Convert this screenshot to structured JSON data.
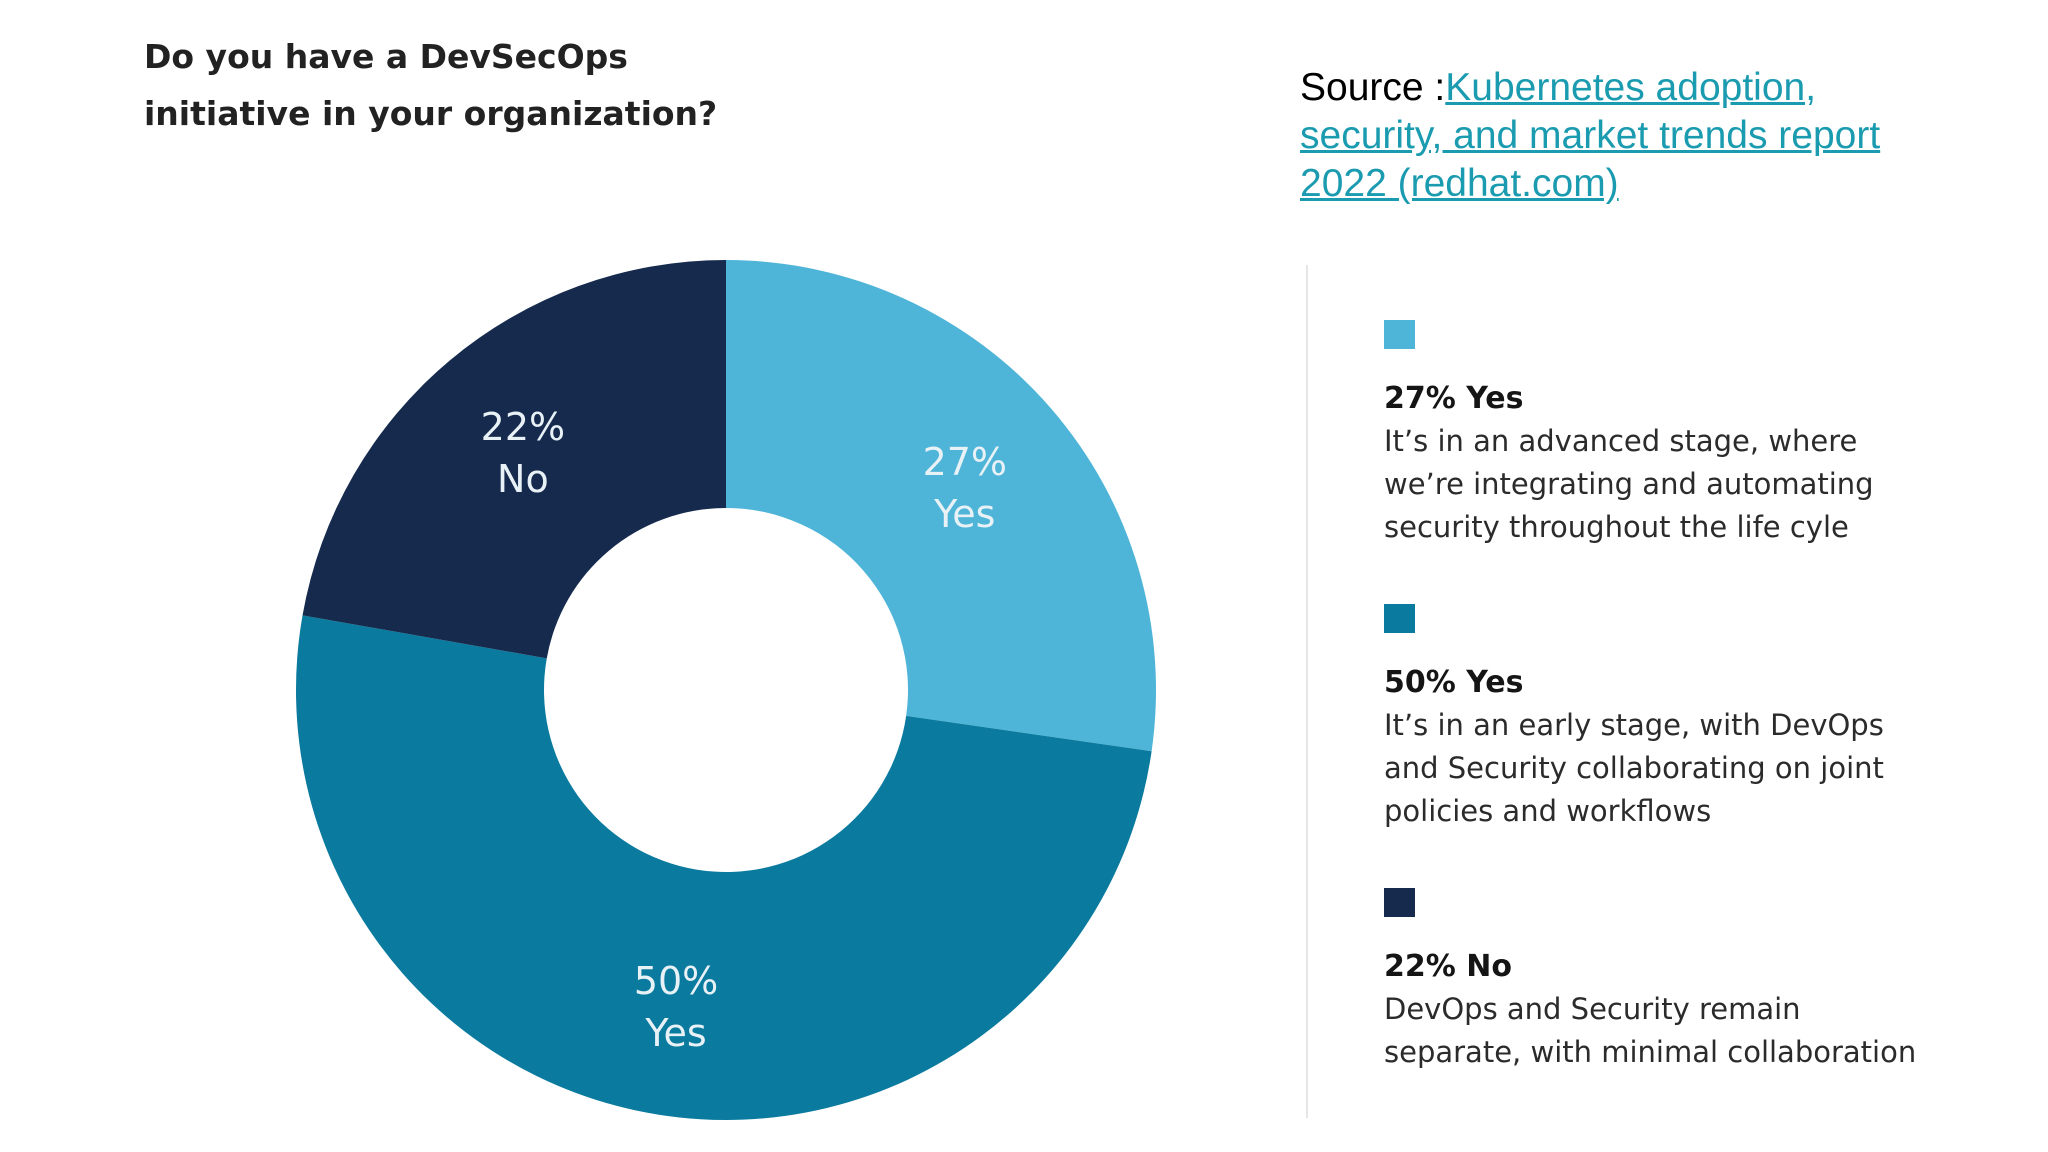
{
  "question": {
    "line1": "Do you have a DevSecOps",
    "line2": "initiative in your organization?"
  },
  "source": {
    "prefix": "Source :",
    "link_line1": "Kubernetes adoption,",
    "link_line2": "security, and market trends report",
    "link_line3": "2022 (redhat.com)"
  },
  "chart_data": {
    "type": "pie",
    "donut": true,
    "slices": [
      {
        "value": 27,
        "label_pct": "27%",
        "label_cat": "Yes",
        "color": "#4fb5d8"
      },
      {
        "value": 50,
        "label_pct": "50%",
        "label_cat": "Yes",
        "color": "#0a7a9e"
      },
      {
        "value": 22,
        "label_pct": "22%",
        "label_cat": "No",
        "color": "#152a4d"
      }
    ],
    "legend_position": "right"
  },
  "legend": [
    {
      "title": "27% Yes",
      "color": "#4fb5d8",
      "lines": [
        "It’s in an advanced stage, where",
        "we’re integrating and automating",
        "security throughout the life cyle"
      ]
    },
    {
      "title": "50% Yes",
      "color": "#0a7a9e",
      "lines": [
        "It’s in an early stage, with DevOps",
        "and Security collaborating on joint",
        "policies and workflows"
      ]
    },
    {
      "title": "22% No",
      "color": "#152a4d",
      "lines": [
        "DevOps and Security remain",
        "separate, with minimal collaboration"
      ]
    }
  ]
}
